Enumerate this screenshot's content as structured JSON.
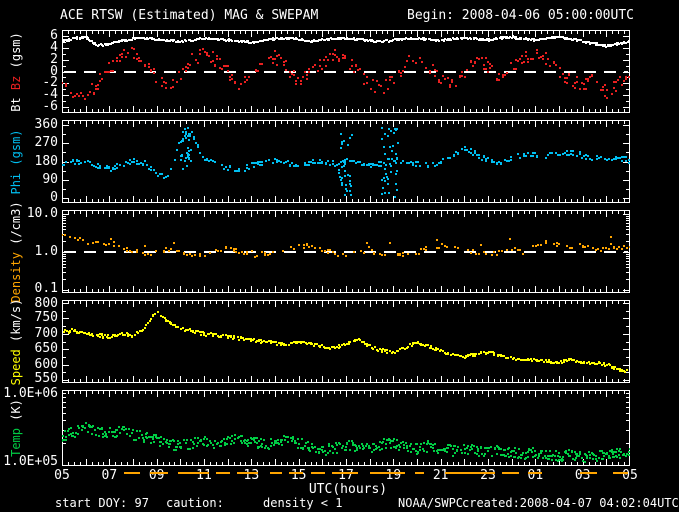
{
  "header": {
    "title": "ACE RTSW (Estimated) MAG & SWEPAM",
    "begin": "Begin: 2008-04-06 05:00:00UTC"
  },
  "footer": {
    "start_doy": "start DOY: 97",
    "caution_label": "caution:",
    "caution_value": "density < 1",
    "agency": "NOAA/SWPC",
    "created": "created:2008-04-07 04:02:04UTC"
  },
  "colors": {
    "background": "#000000",
    "axis": "#ffffff",
    "bt": "#ffffff",
    "bz": "#e82020",
    "phi": "#00bef0",
    "density": "#ffa500",
    "speed": "#ffff00",
    "temp": "#00cc44",
    "caution": "#ffa500"
  },
  "chart_data": {
    "type": "scatter",
    "title": "ACE RTSW (Estimated) MAG & SWEPAM",
    "xlabel": "UTC(hours)",
    "x_range_hours": [
      0,
      24
    ],
    "x_anchor_hours": [
      0,
      0.5,
      1,
      1.5,
      2,
      2.5,
      3,
      3.5,
      4,
      4.5,
      5,
      5.5,
      6,
      6.5,
      7,
      7.5,
      8,
      8.5,
      9,
      9.5,
      10,
      10.5,
      11,
      11.5,
      12,
      12.5,
      13,
      13.5,
      14,
      14.5,
      15,
      15.5,
      16,
      16.5,
      17,
      17.5,
      18,
      18.5,
      19,
      19.5,
      20,
      20.5,
      21,
      21.5,
      22,
      22.5,
      23,
      23.5,
      24
    ],
    "x_tick_hours": [
      0,
      2,
      4,
      6,
      8,
      10,
      12,
      14,
      16,
      18,
      20,
      22,
      24
    ],
    "x_tick_labels": [
      "05",
      "07",
      "09",
      "11",
      "13",
      "15",
      "17",
      "19",
      "21",
      "23",
      "01",
      "03",
      "05"
    ],
    "panels": [
      {
        "name": "mag",
        "ylabel_parts": [
          {
            "text": "Bt ",
            "color": "#ffffff"
          },
          {
            "text": "Bz ",
            "color": "#e82020"
          },
          {
            "text": "(gsm)",
            "color": "#ffffff"
          }
        ],
        "scale": "linear",
        "ylim": [
          -7,
          7
        ],
        "ytick_values": [
          6,
          4,
          2,
          0,
          -2,
          -4,
          -6
        ],
        "ytick_labels": [
          "6",
          "4",
          "2",
          "0",
          "-2",
          "-4",
          "-6"
        ],
        "minor_step": 1,
        "refline": 0,
        "series": [
          {
            "name": "Bz",
            "color": "#e82020",
            "values": [
              -1.5,
              -3.5,
              -4.5,
              -2.0,
              0.5,
              2.5,
              3.5,
              1.5,
              -1.0,
              -2.5,
              -0.5,
              2.0,
              3.0,
              2.0,
              0.0,
              -2.0,
              -1.0,
              1.5,
              2.5,
              0.5,
              -1.5,
              -0.5,
              1.5,
              3.0,
              2.0,
              0.0,
              -2.0,
              -3.0,
              -1.0,
              1.0,
              2.5,
              0.5,
              -1.0,
              -2.0,
              0.0,
              2.0,
              1.0,
              -1.0,
              0.5,
              2.0,
              3.0,
              2.0,
              0.0,
              -1.5,
              -2.5,
              -1.0,
              -3.5,
              -2.0,
              -1.0
            ]
          },
          {
            "name": "Bt",
            "color": "#ffffff",
            "values": [
              5.0,
              5.5,
              5.8,
              4.4,
              4.6,
              5.2,
              5.5,
              5.6,
              5.4,
              5.2,
              5.0,
              5.3,
              5.6,
              5.5,
              5.3,
              5.1,
              4.9,
              5.2,
              5.5,
              5.6,
              5.4,
              5.1,
              5.3,
              5.5,
              5.6,
              5.4,
              5.2,
              5.0,
              5.3,
              5.5,
              5.6,
              5.4,
              5.2,
              5.5,
              5.7,
              5.5,
              5.3,
              5.6,
              5.8,
              5.5,
              5.3,
              5.6,
              5.8,
              5.5,
              5.1,
              4.7,
              4.3,
              4.7,
              5.0
            ]
          }
        ]
      },
      {
        "name": "phi",
        "ylabel_parts": [
          {
            "text": "Phi ",
            "color": "#00bef0"
          },
          {
            "text": "(gsm)",
            "color": "#00bef0"
          }
        ],
        "scale": "linear",
        "ylim": [
          -25,
          385
        ],
        "ytick_values": [
          360,
          270,
          180,
          90,
          0
        ],
        "ytick_labels": [
          "360",
          "270",
          "180",
          "90",
          "0"
        ],
        "minor_step": 45,
        "series": [
          {
            "name": "Phi",
            "color": "#00bef0",
            "values": [
              170,
              180,
              175,
              160,
              140,
              165,
              180,
              170,
              120,
              100,
              280,
              320,
              190,
              170,
              150,
              130,
              160,
              175,
              180,
              170,
              165,
              175,
              180,
              170,
              180,
              175,
              160,
              170,
              180,
              175,
              165,
              160,
              175,
              210,
              245,
              215,
              185,
              175,
              195,
              210,
              215,
              205,
              215,
              225,
              210,
              195,
              200,
              195,
              185
            ]
          }
        ],
        "spreads": [
          {
            "x0": 5.0,
            "x1": 5.5,
            "y0": 140,
            "y1": 345
          },
          {
            "x0": 11.7,
            "x1": 12.3,
            "y0": 10,
            "y1": 350
          },
          {
            "x0": 13.5,
            "x1": 14.2,
            "y0": 5,
            "y1": 355
          }
        ]
      },
      {
        "name": "density",
        "ylabel_parts": [
          {
            "text": "Density ",
            "color": "#ffa500"
          },
          {
            "text": "(/cm3)",
            "color": "#ffffff"
          }
        ],
        "scale": "log",
        "ylim": [
          0.085,
          13
        ],
        "ytick_values": [
          10,
          1,
          0.1
        ],
        "ytick_labels": [
          "10.0",
          "1.0",
          "0.1"
        ],
        "refline": 1,
        "series": [
          {
            "name": "Density",
            "color": "#ffa500",
            "values": [
              2.6,
              2.4,
              2.0,
              1.7,
              1.5,
              1.3,
              1.1,
              0.9,
              1.0,
              1.2,
              1.0,
              0.85,
              0.9,
              1.1,
              1.3,
              1.0,
              0.85,
              0.9,
              1.0,
              1.1,
              1.4,
              1.5,
              1.2,
              0.95,
              0.9,
              1.0,
              1.1,
              0.9,
              0.85,
              0.95,
              1.0,
              1.1,
              1.5,
              1.6,
              1.2,
              0.95,
              0.9,
              1.0,
              1.2,
              1.0,
              1.5,
              1.8,
              1.6,
              1.4,
              1.5,
              1.3,
              1.2,
              1.4,
              1.3
            ]
          }
        ]
      },
      {
        "name": "speed",
        "ylabel_parts": [
          {
            "text": "Speed ",
            "color": "#ffff00"
          },
          {
            "text": "(km/s)",
            "color": "#ffffff"
          }
        ],
        "scale": "linear",
        "ylim": [
          540,
          810
        ],
        "ytick_values": [
          800,
          750,
          700,
          650,
          600,
          550
        ],
        "ytick_labels": [
          "800",
          "750",
          "700",
          "650",
          "600",
          "550"
        ],
        "minor_step": 25,
        "series": [
          {
            "name": "Speed",
            "color": "#ffff00",
            "values": [
              705,
              710,
              700,
              695,
              690,
              700,
              695,
              720,
              770,
              740,
              715,
              710,
              700,
              695,
              690,
              685,
              680,
              675,
              670,
              665,
              672,
              668,
              660,
              655,
              665,
              680,
              660,
              645,
              640,
              655,
              670,
              660,
              645,
              630,
              625,
              635,
              640,
              628,
              620,
              615,
              618,
              612,
              608,
              615,
              610,
              605,
              600,
              585,
              575
            ]
          }
        ]
      },
      {
        "name": "temp",
        "ylabel_parts": [
          {
            "text": "Temp ",
            "color": "#00cc44"
          },
          {
            "text": "(K)",
            "color": "#ffffff"
          }
        ],
        "scale": "log",
        "ylim": [
          100000.0,
          1000000.0
        ],
        "ytick_values": [
          1000000.0,
          100000.0
        ],
        "ytick_labels": [
          "1.0E+06",
          "1.0E+05"
        ],
        "series": [
          {
            "name": "Temp",
            "color": "#00cc44",
            "values": [
              240000.0,
              280000.0,
              320000.0,
              290000.0,
              270000.0,
              280000.0,
              260000.0,
              240000.0,
              220000.0,
              190000.0,
              180000.0,
              200000.0,
              210000.0,
              200000.0,
              220000.0,
              230000.0,
              210000.0,
              190000.0,
              200000.0,
              220000.0,
              200000.0,
              180000.0,
              160000.0,
              170000.0,
              190000.0,
              180000.0,
              170000.0,
              190000.0,
              200000.0,
              180000.0,
              170000.0,
              180000.0,
              170000.0,
              160000.0,
              170000.0,
              160000.0,
              150000.0,
              160000.0,
              150000.0,
              140000.0,
              150000.0,
              140000.0,
              135000.0,
              140000.0,
              135000.0,
              130000.0,
              140000.0,
              145000.0,
              150000.0
            ]
          }
        ]
      }
    ],
    "caution_segments_hours": [
      [
        2.6,
        3.3
      ],
      [
        3.7,
        4.5
      ],
      [
        4.9,
        6.2
      ],
      [
        6.5,
        7.1
      ],
      [
        7.4,
        8.3
      ],
      [
        8.8,
        9.3
      ],
      [
        9.6,
        10.2
      ],
      [
        10.5,
        11.1
      ],
      [
        11.4,
        12.5
      ],
      [
        13.0,
        14.5
      ],
      [
        14.9,
        15.3
      ],
      [
        16.2,
        18.3
      ],
      [
        18.6,
        19.3
      ],
      [
        19.7,
        20.3
      ],
      [
        21.9,
        22.6
      ],
      [
        23.3,
        23.9
      ]
    ]
  }
}
